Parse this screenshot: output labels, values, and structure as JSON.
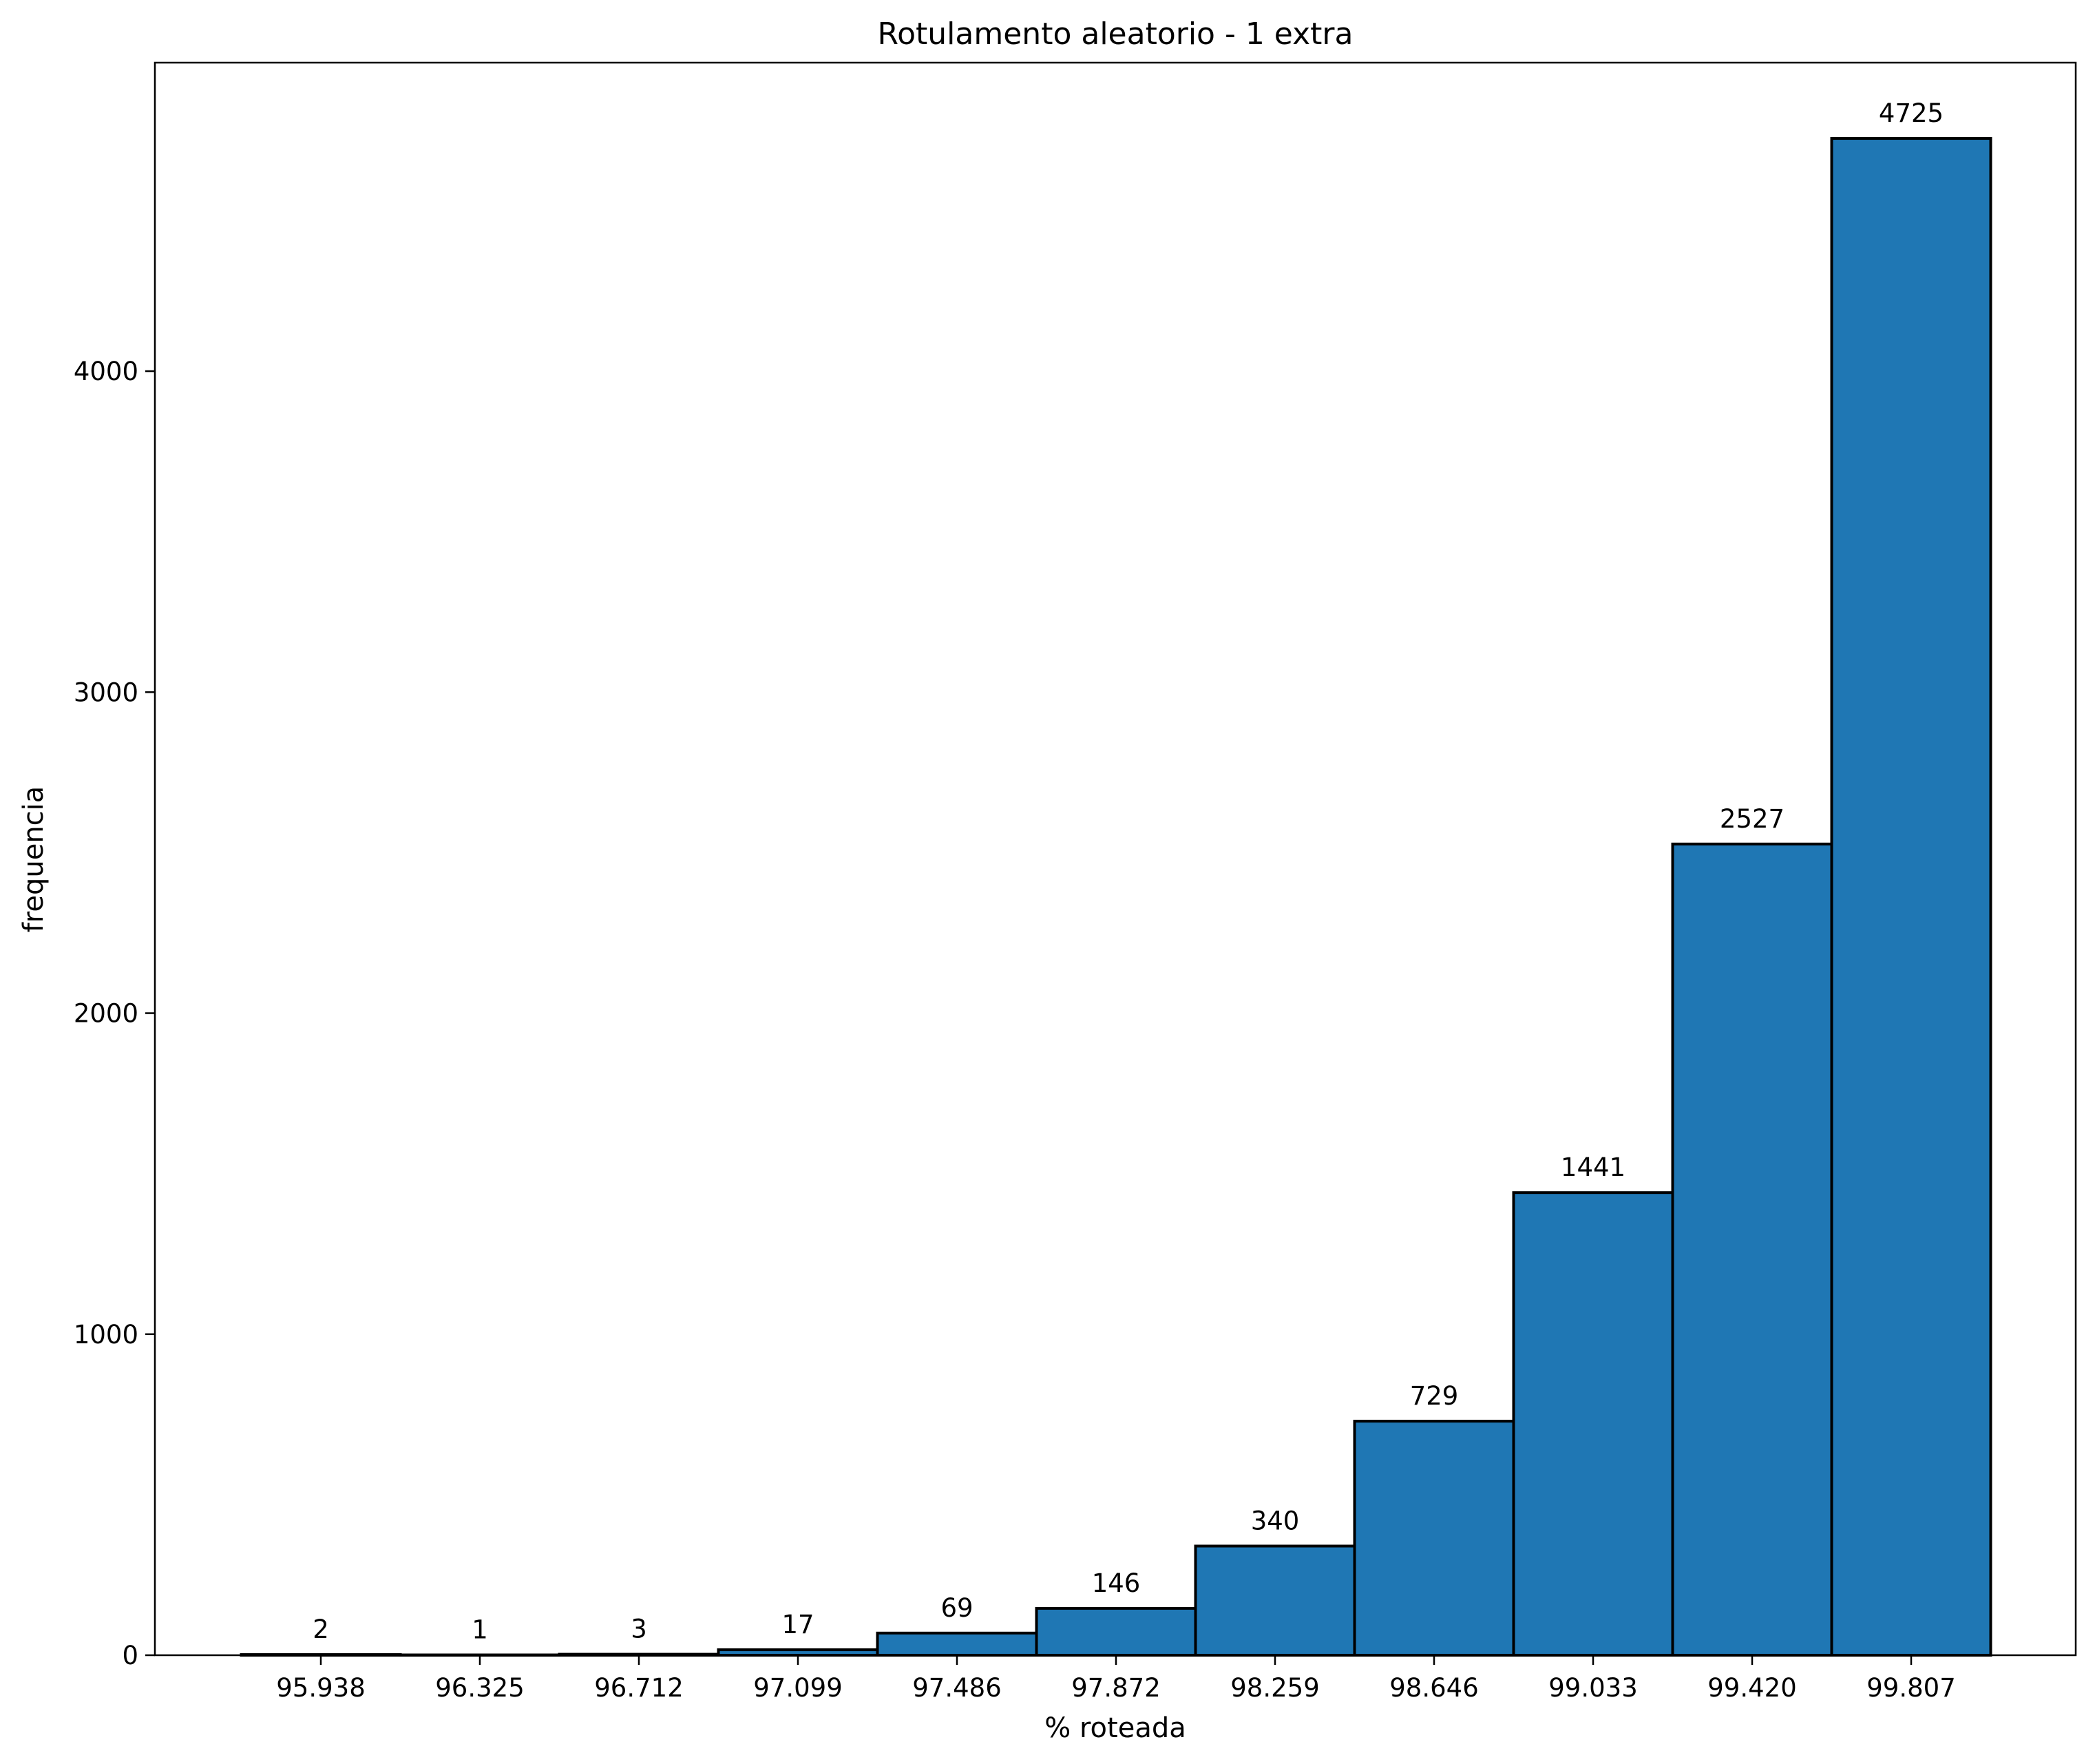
{
  "chart_data": {
    "type": "bar",
    "title": "Rotulamento aleatorio - 1 extra",
    "xlabel": "% roteada",
    "ylabel": "frequencia",
    "categories": [
      "95.938",
      "96.325",
      "96.712",
      "97.099",
      "97.486",
      "97.872",
      "98.259",
      "98.646",
      "99.033",
      "99.420",
      "99.807"
    ],
    "values": [
      2,
      1,
      3,
      17,
      69,
      146,
      340,
      729,
      1441,
      2527,
      4725
    ],
    "bar_labels": [
      "2",
      "1",
      "3",
      "17",
      "69",
      "146",
      "340",
      "729",
      "1441",
      "2527",
      "4725"
    ],
    "y_ticks": [
      0,
      1000,
      2000,
      3000,
      4000
    ],
    "y_tick_labels": [
      "0",
      "1000",
      "2000",
      "3000",
      "4000"
    ],
    "ylim": [
      0,
      4961
    ],
    "grid": false,
    "legend": "none",
    "colors": {
      "bar_fill": "#1f77b4",
      "bar_edge": "#000000",
      "axes": "#000000"
    }
  }
}
